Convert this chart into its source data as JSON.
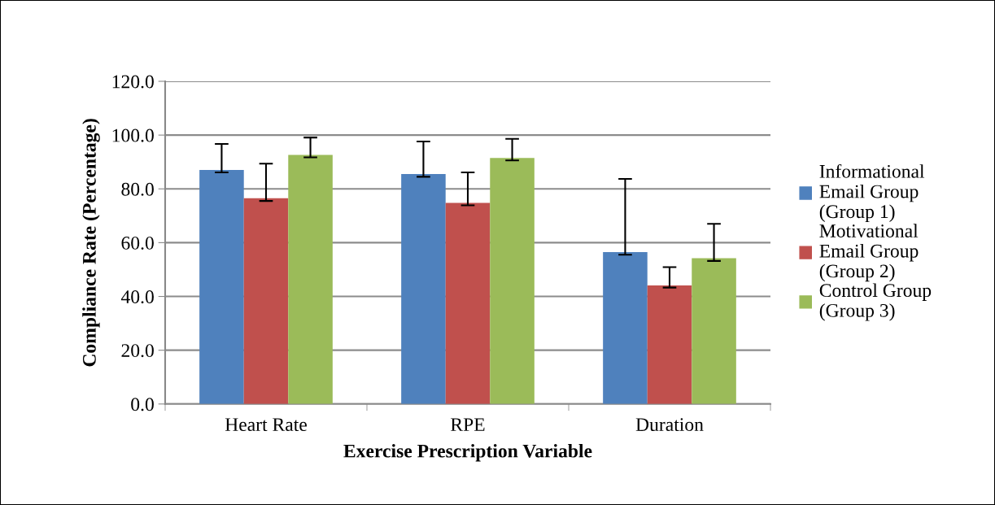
{
  "chart_data": {
    "type": "bar",
    "xlabel": "Exercise Prescription Variable",
    "ylabel": "Compliance Rate (Percentage)",
    "categories": [
      "Heart Rate",
      "RPE",
      "Duration"
    ],
    "series": [
      {
        "name": "Informational\nEmail Group\n(Group 1)",
        "color": "#4f81bd",
        "values": [
          87.0,
          85.5,
          56.5
        ],
        "errors": [
          [
            86.1,
            96.7
          ],
          [
            84.5,
            97.6
          ],
          [
            55.5,
            83.7
          ]
        ]
      },
      {
        "name": "Motivational\nEmail Group\n(Group 2)",
        "color": "#c0504d",
        "values": [
          76.5,
          74.8,
          44.1
        ],
        "errors": [
          [
            75.5,
            89.4
          ],
          [
            73.9,
            86.1
          ],
          [
            43.3,
            50.9
          ]
        ]
      },
      {
        "name": "Control Group\n(Group 3)",
        "color": "#9bbb59",
        "values": [
          92.6,
          91.5,
          54.2
        ],
        "errors": [
          [
            91.7,
            99.1
          ],
          [
            90.6,
            98.6
          ],
          [
            53.2,
            67.0
          ]
        ]
      }
    ],
    "ylim": [
      0,
      120
    ],
    "yticks": [
      {
        "value": 0,
        "label": "0.0"
      },
      {
        "value": 20,
        "label": "20.0"
      },
      {
        "value": 40,
        "label": "40.0"
      },
      {
        "value": 60,
        "label": "60.0"
      },
      {
        "value": 80,
        "label": "80.0"
      },
      {
        "value": 100,
        "label": "100.0"
      },
      {
        "value": 120,
        "label": "120.0"
      }
    ],
    "grid": "y",
    "legend": "right"
  }
}
